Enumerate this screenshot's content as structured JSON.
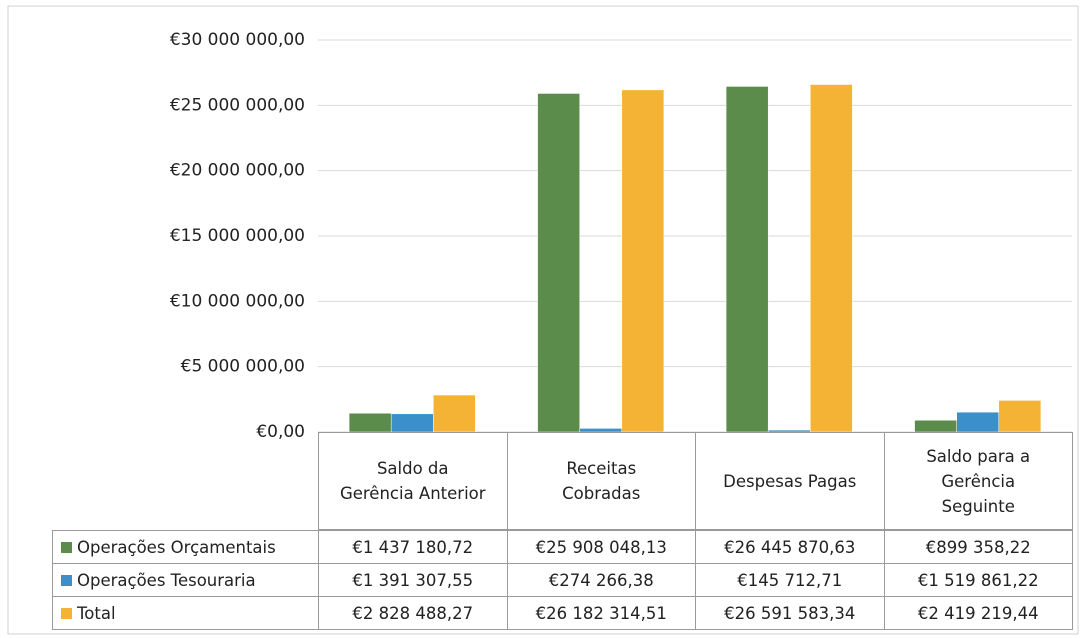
{
  "chart_data": {
    "type": "bar",
    "categories": [
      "Saldo da Gerência Anterior",
      "Receitas Cobradas",
      "Despesas Pagas",
      "Saldo para a Gerência Seguinte"
    ],
    "series": [
      {
        "name": "Operações Orçamentais",
        "color": "#5b8c4b",
        "values": [
          1437180.72,
          25908048.13,
          26445870.63,
          899358.22
        ],
        "value_labels": [
          "€1 437 180,72",
          "€25 908 048,13",
          "€26 445 870,63",
          "€899 358,22"
        ]
      },
      {
        "name": "Operações Tesouraria",
        "color": "#3b8fcb",
        "values": [
          1391307.55,
          274266.38,
          145712.71,
          1519861.22
        ],
        "value_labels": [
          "€1 391 307,55",
          "€274 266,38",
          "€145 712,71",
          "€1 519 861,22"
        ]
      },
      {
        "name": "Total",
        "color": "#f5b335",
        "values": [
          2828488.27,
          26182314.51,
          26591583.34,
          2419219.44
        ],
        "value_labels": [
          "€2 828 488,27",
          "€26 182 314,51",
          "€26 591 583,34",
          "€2 419 219,44"
        ]
      }
    ],
    "ylim": [
      0,
      30000000
    ],
    "yticks": [
      {
        "value": 0,
        "label": "€0,00"
      },
      {
        "value": 5000000,
        "label": "€5 000 000,00"
      },
      {
        "value": 10000000,
        "label": "€10 000 000,00"
      },
      {
        "value": 15000000,
        "label": "€15 000 000,00"
      },
      {
        "value": 20000000,
        "label": "€20 000 000,00"
      },
      {
        "value": 25000000,
        "label": "€25 000 000,00"
      },
      {
        "value": 30000000,
        "label": "€30 000 000,00"
      }
    ],
    "grid": true,
    "legend": "table"
  }
}
